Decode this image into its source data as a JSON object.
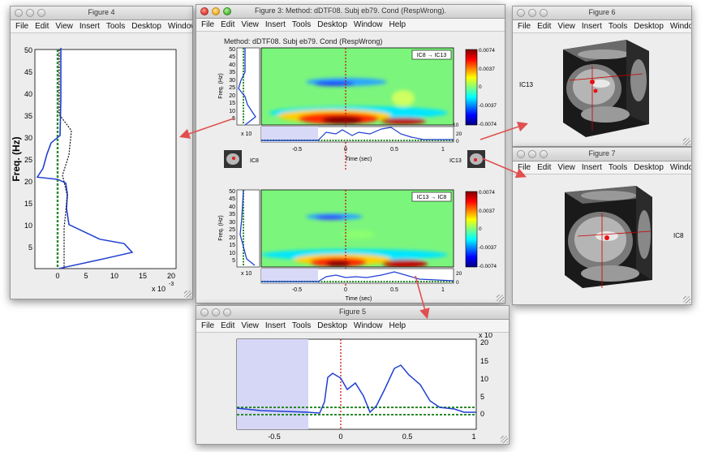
{
  "menu": [
    "File",
    "Edit",
    "View",
    "Insert",
    "Tools",
    "Desktop",
    "Window",
    "Help"
  ],
  "fig3": {
    "title": "Figure 3: Method: dDTF08. Subj eb79. Cond (RespWrong).",
    "plot_title": "Method: dDTF08. Subj eb79. Cond (RespWrong)",
    "top_label": "IC8 → IC13",
    "bottom_label": "IC13 → IC8",
    "ylabel": "Freq. (Hz)",
    "xlabel": "Time (sec)",
    "yticks": [
      "50",
      "45",
      "40",
      "35",
      "30",
      "25",
      "20",
      "15",
      "10",
      "5"
    ],
    "xticks": [
      "-0.5",
      "0",
      "0.5",
      "1"
    ],
    "cbar_ticks": [
      "0.0074",
      "0.0037",
      "0",
      "-0.0037",
      "-0.0074"
    ],
    "scale_x10": "x 10",
    "trace_ticks": [
      "20",
      "0"
    ],
    "src_top": "IC8",
    "src_top_right": "IC13",
    "spec_tick": "0",
    "spec_tick2": "10"
  },
  "fig4": {
    "title": "Figure 4",
    "ylabel": "Freq. (Hz)",
    "yticks": [
      "50",
      "45",
      "40",
      "35",
      "30",
      "25",
      "20",
      "15",
      "10",
      "5"
    ],
    "xticks": [
      "0",
      "5",
      "10",
      "15",
      "20"
    ],
    "xscale": "x 10",
    "xexp": "-3"
  },
  "fig5": {
    "title": "Figure 5",
    "xticks": [
      "-0.5",
      "0",
      "0.5",
      "1"
    ],
    "yticks": [
      "20",
      "15",
      "10",
      "5",
      "0"
    ],
    "yscale": "x 10"
  },
  "fig6": {
    "title": "Figure 6",
    "label": "IC13"
  },
  "fig7": {
    "title": "Figure 7",
    "label": "IC8"
  }
}
